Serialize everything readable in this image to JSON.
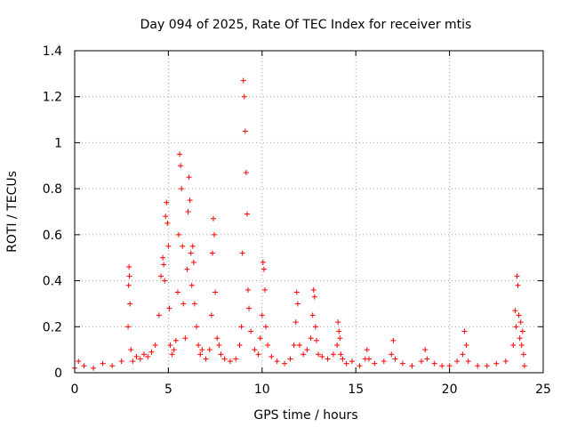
{
  "chart_data": {
    "type": "scatter",
    "title": "Day 094 of 2025, Rate Of TEC Index for receiver mtis",
    "xlabel": "GPS time / hours",
    "ylabel": "ROTI / TECUs",
    "xlim": [
      0,
      25
    ],
    "ylim": [
      0,
      1.4
    ],
    "x_ticks": [
      "0",
      "5",
      "10",
      "15",
      "20",
      "25"
    ],
    "y_ticks": [
      "0",
      "0.2",
      "0.4",
      "0.6",
      "0.8",
      "1",
      "1.2",
      "1.4"
    ],
    "grid": true,
    "marker": "plus",
    "color": "#ff0000",
    "series": [
      {
        "x": [
          0.0,
          0.2,
          0.5,
          1.0,
          1.5,
          2.0,
          2.5,
          2.85,
          2.88,
          2.9,
          2.92,
          2.95,
          3.0,
          3.1,
          3.3,
          3.5,
          3.7,
          3.9,
          4.1,
          4.3,
          4.5,
          4.6,
          4.7,
          4.75,
          4.8,
          4.85,
          4.9,
          4.95,
          5.0,
          5.05,
          5.1,
          5.2,
          5.3,
          5.4,
          5.5,
          5.55,
          5.6,
          5.65,
          5.7,
          5.75,
          5.8,
          5.9,
          6.0,
          6.05,
          6.1,
          6.15,
          6.2,
          6.25,
          6.3,
          6.35,
          6.4,
          6.5,
          6.6,
          6.7,
          6.8,
          7.0,
          7.2,
          7.3,
          7.35,
          7.4,
          7.45,
          7.5,
          7.6,
          7.7,
          7.8,
          8.0,
          8.3,
          8.6,
          8.8,
          8.9,
          8.95,
          9.0,
          9.05,
          9.1,
          9.15,
          9.2,
          9.25,
          9.3,
          9.4,
          9.6,
          9.8,
          9.9,
          10.0,
          10.05,
          10.1,
          10.15,
          10.2,
          10.3,
          10.5,
          10.8,
          11.2,
          11.5,
          11.7,
          11.8,
          11.85,
          11.9,
          12.0,
          12.2,
          12.4,
          12.6,
          12.7,
          12.75,
          12.8,
          12.85,
          12.9,
          13.0,
          13.2,
          13.5,
          13.8,
          14.0,
          14.05,
          14.1,
          14.15,
          14.2,
          14.3,
          14.5,
          14.8,
          15.2,
          15.5,
          15.6,
          15.7,
          16.0,
          16.5,
          16.9,
          17.0,
          17.1,
          17.5,
          18.0,
          18.5,
          18.7,
          18.8,
          19.2,
          19.6,
          20.0,
          20.4,
          20.7,
          20.8,
          20.9,
          21.0,
          21.5,
          22.0,
          22.5,
          23.0,
          23.4,
          23.5,
          23.55,
          23.6,
          23.65,
          23.7,
          23.75,
          23.8,
          23.85,
          23.9,
          23.95,
          24.0
        ],
        "y": [
          0.02,
          0.05,
          0.03,
          0.02,
          0.04,
          0.03,
          0.05,
          0.2,
          0.38,
          0.46,
          0.42,
          0.3,
          0.1,
          0.05,
          0.07,
          0.06,
          0.08,
          0.07,
          0.09,
          0.12,
          0.25,
          0.42,
          0.5,
          0.47,
          0.4,
          0.68,
          0.74,
          0.65,
          0.55,
          0.28,
          0.12,
          0.08,
          0.1,
          0.14,
          0.35,
          0.6,
          0.95,
          0.9,
          0.8,
          0.55,
          0.3,
          0.15,
          0.45,
          0.7,
          0.85,
          0.75,
          0.52,
          0.38,
          0.55,
          0.48,
          0.3,
          0.2,
          0.12,
          0.08,
          0.1,
          0.06,
          0.1,
          0.25,
          0.52,
          0.67,
          0.6,
          0.35,
          0.15,
          0.12,
          0.08,
          0.06,
          0.05,
          0.06,
          0.12,
          0.2,
          0.52,
          1.27,
          1.2,
          1.05,
          0.87,
          0.69,
          0.36,
          0.28,
          0.18,
          0.1,
          0.08,
          0.15,
          0.25,
          0.48,
          0.45,
          0.36,
          0.2,
          0.12,
          0.07,
          0.05,
          0.04,
          0.06,
          0.12,
          0.22,
          0.35,
          0.3,
          0.12,
          0.08,
          0.1,
          0.15,
          0.25,
          0.36,
          0.33,
          0.2,
          0.14,
          0.08,
          0.07,
          0.06,
          0.08,
          0.12,
          0.22,
          0.18,
          0.15,
          0.08,
          0.06,
          0.04,
          0.05,
          0.03,
          0.06,
          0.1,
          0.06,
          0.04,
          0.05,
          0.08,
          0.14,
          0.06,
          0.04,
          0.03,
          0.05,
          0.1,
          0.06,
          0.04,
          0.03,
          0.03,
          0.05,
          0.08,
          0.18,
          0.12,
          0.05,
          0.03,
          0.03,
          0.04,
          0.05,
          0.12,
          0.27,
          0.2,
          0.42,
          0.38,
          0.25,
          0.15,
          0.22,
          0.12,
          0.18,
          0.08,
          0.03
        ]
      }
    ]
  }
}
